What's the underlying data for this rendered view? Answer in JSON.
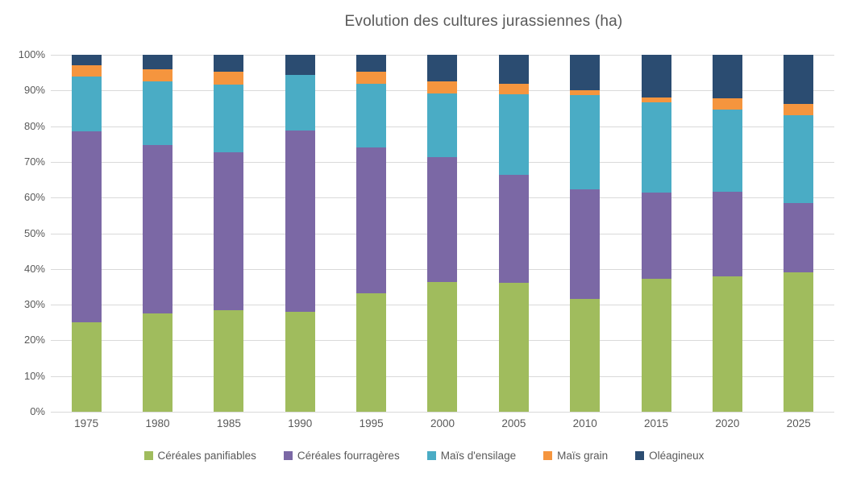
{
  "chart_data": {
    "type": "bar",
    "variant": "stacked-100-percent",
    "title": "Evolution des cultures jurassiennes (ha)",
    "title_color": "#595959",
    "text_color": "#595959",
    "grid_color": "#D9D9D9",
    "background": "#FFFFFF",
    "grid": true,
    "legend_position": "bottom",
    "ylim": [
      0,
      100
    ],
    "y_ticks": [
      "0%",
      "10%",
      "20%",
      "30%",
      "40%",
      "50%",
      "60%",
      "70%",
      "80%",
      "90%",
      "100%"
    ],
    "categories": [
      "1975",
      "1980",
      "1985",
      "1990",
      "1995",
      "2000",
      "2005",
      "2010",
      "2015",
      "2020",
      "2025"
    ],
    "series": [
      {
        "name": "Céréales panifiables",
        "color": "#A0BC5D",
        "values": [
          25.0,
          27.5,
          28.5,
          28.0,
          33.2,
          36.4,
          36.1,
          31.6,
          37.3,
          37.9,
          39.0
        ]
      },
      {
        "name": "Céréales fourragères",
        "color": "#7B68A5",
        "values": [
          53.5,
          47.3,
          44.2,
          50.8,
          40.8,
          35.0,
          30.2,
          30.7,
          24.1,
          23.8,
          19.4
        ]
      },
      {
        "name": "Maïs d'ensilage",
        "color": "#4AACC5",
        "values": [
          15.3,
          17.7,
          18.9,
          15.6,
          17.9,
          17.8,
          22.6,
          26.4,
          25.2,
          23.0,
          24.7
        ]
      },
      {
        "name": "Maïs grain",
        "color": "#F5953E",
        "values": [
          3.2,
          3.4,
          3.7,
          0.0,
          3.3,
          3.4,
          3.0,
          1.4,
          1.5,
          3.2,
          3.2
        ]
      },
      {
        "name": "Oléagineux",
        "color": "#2B4C71",
        "values": [
          3.0,
          4.1,
          4.7,
          5.6,
          4.8,
          7.4,
          8.1,
          9.9,
          11.9,
          12.1,
          13.7
        ]
      }
    ]
  }
}
